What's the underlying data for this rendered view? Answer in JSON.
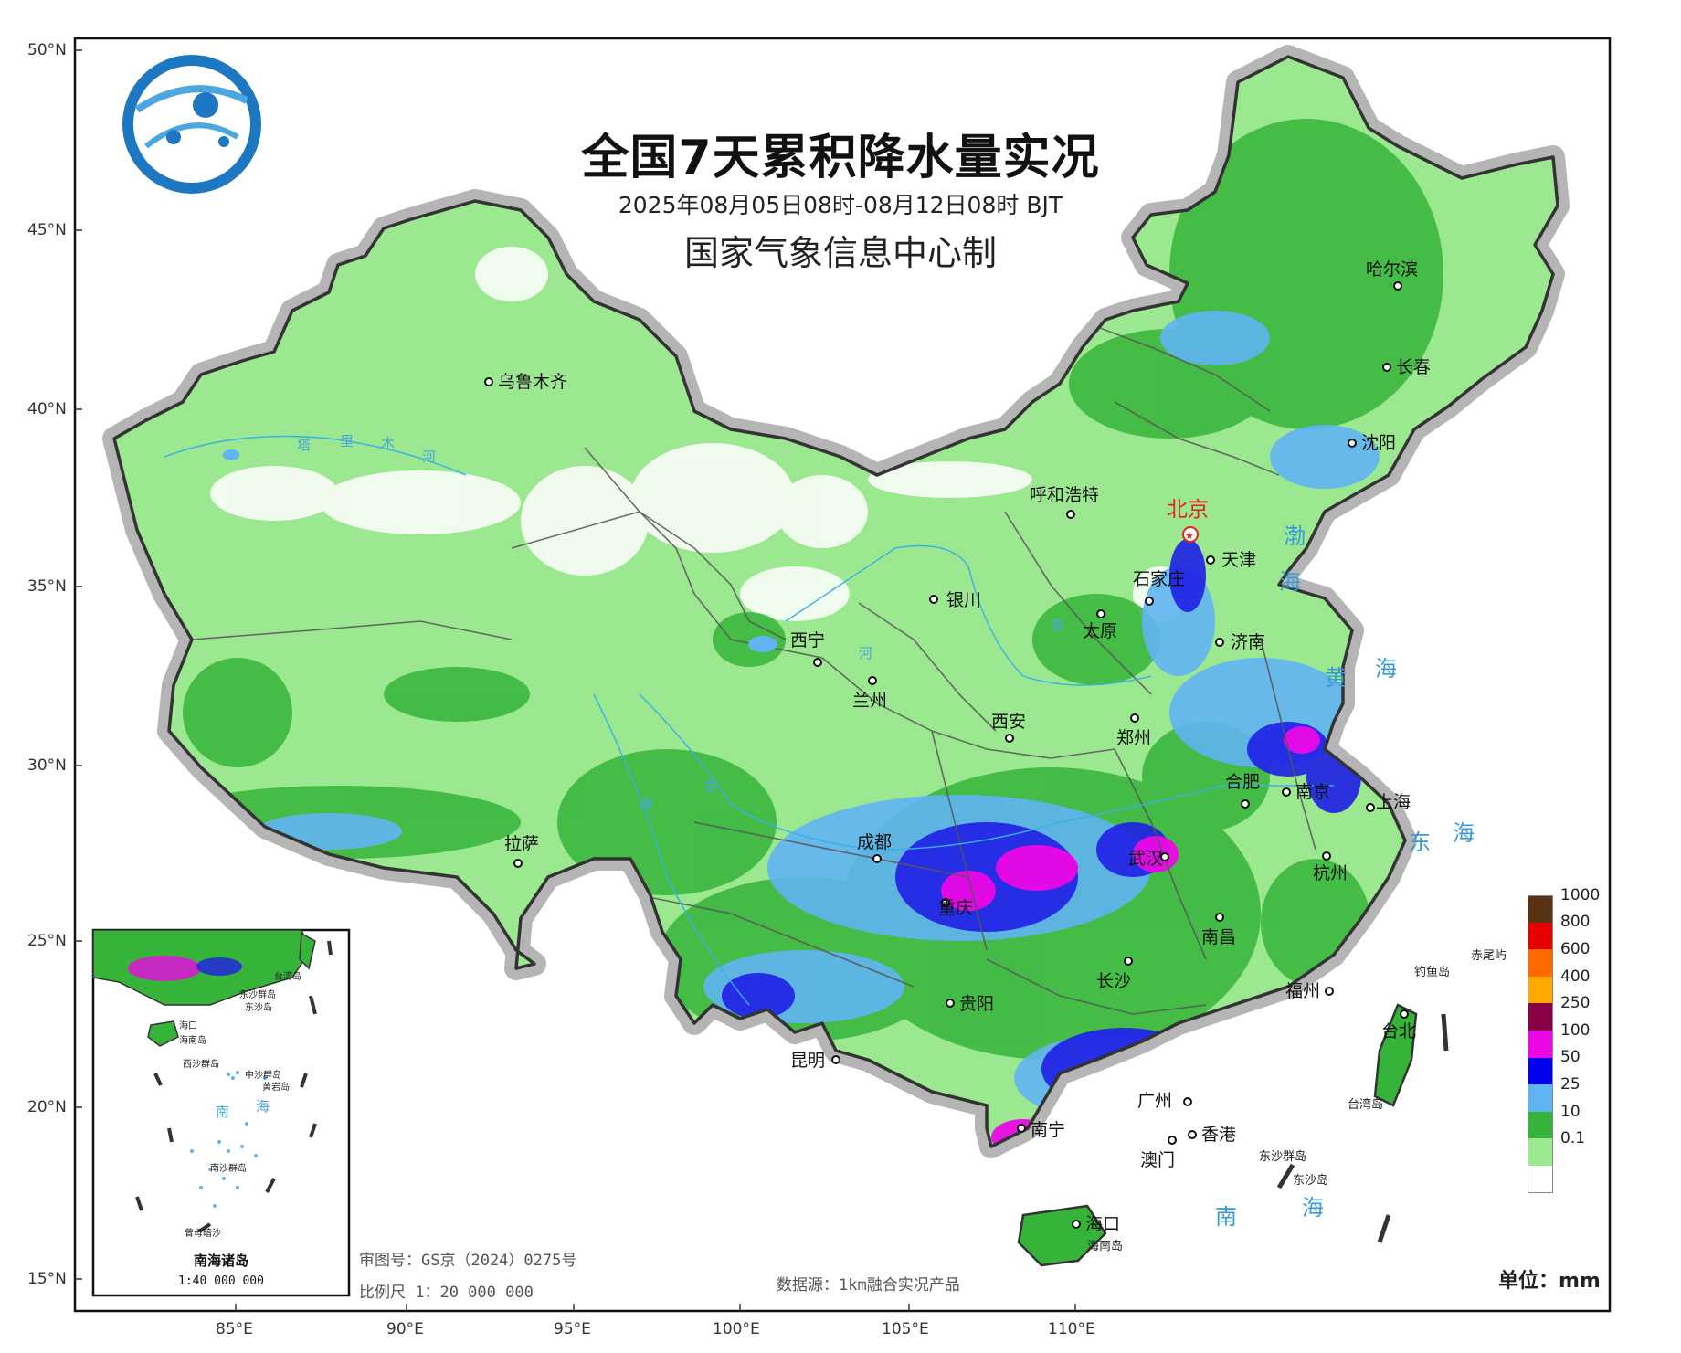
{
  "header": {
    "title": "全国7天累积降水量实况",
    "period": "2025年08月05日08时-08月12日08时 BJT",
    "producer": "国家气象信息中心制"
  },
  "colors": {
    "land_trace": "#9be890",
    "land_light": "#8ee57f",
    "mid_green": "#36b43a",
    "light_blue": "#61b4f2",
    "blue": "#1f1fe6",
    "magenta": "#ec08e6",
    "border": "#333333",
    "halo": "#b5b5b5",
    "sea_text": "#3a9ad9",
    "capital": "#e1251b"
  },
  "axes": {
    "lat_labels": [
      "50°N",
      "45°N",
      "40°N",
      "35°N",
      "30°N",
      "25°N",
      "20°N",
      "15°N"
    ],
    "lon_labels": [
      "85°E",
      "90°E",
      "95°E",
      "100°E",
      "105°E",
      "110°E"
    ]
  },
  "capital": {
    "name": "北京"
  },
  "cities": [
    {
      "id": "urumqi",
      "name": "乌鲁木齐"
    },
    {
      "id": "hohhot",
      "name": "呼和浩特"
    },
    {
      "id": "harbin",
      "name": "哈尔滨"
    },
    {
      "id": "changchun",
      "name": "长春"
    },
    {
      "id": "shenyang",
      "name": "沈阳"
    },
    {
      "id": "tianjin",
      "name": "天津"
    },
    {
      "id": "shijiazhuang",
      "name": "石家庄"
    },
    {
      "id": "yinchuan",
      "name": "银川"
    },
    {
      "id": "taiyuan",
      "name": "太原"
    },
    {
      "id": "jinan",
      "name": "济南"
    },
    {
      "id": "xining",
      "name": "西宁"
    },
    {
      "id": "lanzhou",
      "name": "兰州"
    },
    {
      "id": "xian",
      "name": "西安"
    },
    {
      "id": "zhengzhou",
      "name": "郑州"
    },
    {
      "id": "hefei",
      "name": "合肥"
    },
    {
      "id": "nanjing",
      "name": "南京"
    },
    {
      "id": "shanghai",
      "name": "上海"
    },
    {
      "id": "lhasa",
      "name": "拉萨"
    },
    {
      "id": "chengdu",
      "name": "成都"
    },
    {
      "id": "wuhan",
      "name": "武汉"
    },
    {
      "id": "hangzhou",
      "name": "杭州"
    },
    {
      "id": "chongqing",
      "name": "重庆"
    },
    {
      "id": "nanchang",
      "name": "南昌"
    },
    {
      "id": "changsha",
      "name": "长沙"
    },
    {
      "id": "guiyang",
      "name": "贵阳"
    },
    {
      "id": "fuzhou",
      "name": "福州"
    },
    {
      "id": "kunming",
      "name": "昆明"
    },
    {
      "id": "taipei",
      "name": "台北"
    },
    {
      "id": "guangzhou",
      "name": "广州"
    },
    {
      "id": "nanning",
      "name": "南宁"
    },
    {
      "id": "hongkong",
      "name": "香港"
    },
    {
      "id": "macau",
      "name": "澳门"
    },
    {
      "id": "haikou",
      "name": "海口"
    }
  ],
  "seas": {
    "bohai_1": "渤",
    "bohai_2": "海",
    "yellow_1": "黄",
    "yellow_2": "海",
    "east_1": "东",
    "east_2": "海",
    "south_1": "南",
    "south_2": "海"
  },
  "rivers": {
    "tarim": [
      "塔",
      "里",
      "木",
      "河"
    ],
    "yellow": [
      "黄",
      "河"
    ],
    "jinsha": "金",
    "lancang": "澜"
  },
  "islands": {
    "hainan": "海南岛",
    "taiwan": "台湾岛",
    "diaoyu": "钓鱼岛",
    "chiwei": "赤尾屿",
    "dongsha_islands": "东沙群岛",
    "dongsha_island": "东沙岛"
  },
  "inset": {
    "title": "南海诸岛",
    "scale": "1:40 000 000",
    "labels": {
      "taiwan": "台湾岛",
      "dongsha_islands": "东沙群岛",
      "dongsha_island": "东沙岛",
      "haikou": "海口",
      "hainan": "海南岛",
      "xisha": "西沙群岛",
      "zhongsha": "中沙群岛",
      "huangyan": "黄岩岛",
      "nan": "南",
      "hai": "海",
      "nansha": "南沙群岛",
      "zengmu": "曾母暗沙"
    }
  },
  "legend": {
    "unit": "单位：mm",
    "entries": [
      {
        "label": "1000",
        "color": "#5a3214"
      },
      {
        "label": "800",
        "color": "#e60000"
      },
      {
        "label": "600",
        "color": "#ff6a00"
      },
      {
        "label": "400",
        "color": "#ffa800"
      },
      {
        "label": "250",
        "color": "#8a0046"
      },
      {
        "label": "100",
        "color": "#ec08e6"
      },
      {
        "label": "50",
        "color": "#0000f0"
      },
      {
        "label": "25",
        "color": "#61b4f2"
      },
      {
        "label": "10",
        "color": "#36b43a"
      },
      {
        "label": "0.1",
        "color": "#9be890"
      },
      {
        "label": "",
        "color": "#ffffff"
      }
    ]
  },
  "footer": {
    "approval": "审图号：GS京（2024）0275号",
    "scale": "比例尺 1：20 000 000",
    "source": "数据源：1km融合实况产品"
  }
}
